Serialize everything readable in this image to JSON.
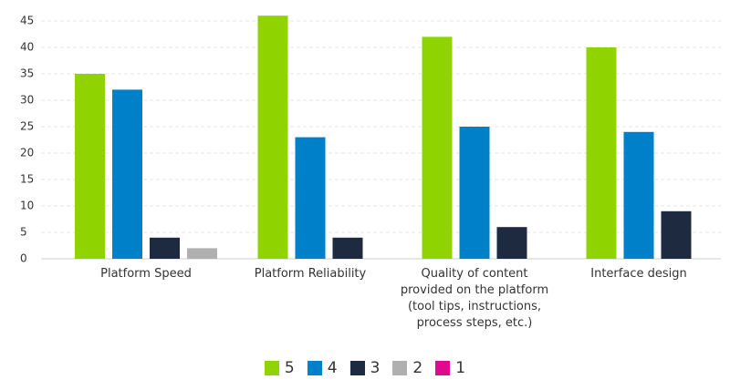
{
  "chart_data": {
    "type": "bar",
    "categories": [
      "Platform Speed",
      "Platform Reliability",
      "Quality of content provided on the platform (tool tips, instructions, process steps, etc.)",
      "Interface design"
    ],
    "series": [
      {
        "name": "5",
        "color": "#8fd400",
        "values": [
          35,
          46,
          42,
          40
        ]
      },
      {
        "name": "4",
        "color": "#0080c8",
        "values": [
          32,
          23,
          25,
          24
        ]
      },
      {
        "name": "3",
        "color": "#1e2a40",
        "values": [
          4,
          4,
          6,
          9
        ]
      },
      {
        "name": "2",
        "color": "#b0b0b0",
        "values": [
          2,
          0,
          0,
          0
        ]
      },
      {
        "name": "1",
        "color": "#e0088c",
        "values": [
          0,
          0,
          0,
          0
        ]
      }
    ],
    "ylim": [
      0,
      47
    ],
    "yticks": [
      0,
      5,
      10,
      15,
      20,
      25,
      30,
      35,
      40,
      45
    ],
    "grid": true,
    "legend": "bottom"
  }
}
